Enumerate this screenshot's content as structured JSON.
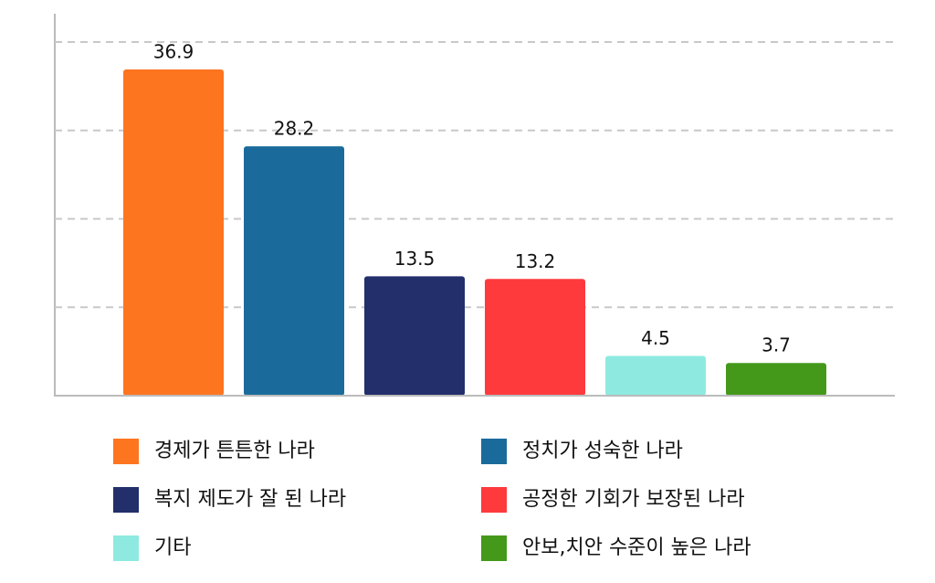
{
  "chart_data": {
    "type": "bar",
    "categories": [
      "경제가 튼튼한 나라",
      "정치가 성숙한 나라",
      "복지 제도가 잘 된 나라",
      "공정한 기회가 보장된 나라",
      "기타",
      "안보,치안 수준이 높은 나라"
    ],
    "values": [
      36.9,
      28.2,
      13.5,
      13.2,
      4.5,
      3.7
    ],
    "colors": [
      "#fe7520",
      "#1a6b9c",
      "#222f6b",
      "#fe3a3d",
      "#8eeae0",
      "#44991b"
    ],
    "ylim": [
      0,
      43
    ],
    "yticks": [
      10,
      20,
      30,
      40
    ],
    "grid": true
  }
}
